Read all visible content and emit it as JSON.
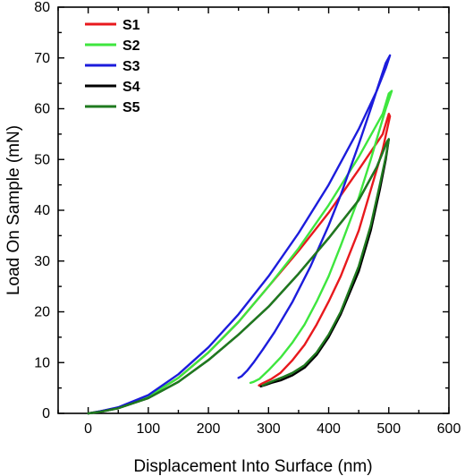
{
  "chart_data": {
    "type": "line",
    "title": "",
    "xlabel": "Displacement Into Surface (nm)",
    "ylabel": "Load On Sample (mN)",
    "xlim": [
      -50,
      600
    ],
    "ylim": [
      0,
      80
    ],
    "x_ticks": [
      0,
      100,
      200,
      300,
      400,
      500,
      600
    ],
    "y_ticks": [
      0,
      10,
      20,
      30,
      40,
      50,
      60,
      70,
      80
    ],
    "grid": false,
    "legend_position": "top-left",
    "series": [
      {
        "name": "S1",
        "color": "#e8191d",
        "x": [
          0,
          20,
          50,
          100,
          150,
          200,
          250,
          300,
          350,
          400,
          450,
          490,
          500,
          502,
          490,
          470,
          450,
          420,
          400,
          380,
          360,
          340,
          320,
          305,
          295,
          288,
          284
        ],
        "y": [
          0,
          0.4,
          1.1,
          3.3,
          7.0,
          12.0,
          18.0,
          25.0,
          32.0,
          39.5,
          48.0,
          55.0,
          59.0,
          58.5,
          52.0,
          44.0,
          36.0,
          27.0,
          22.0,
          17.5,
          13.5,
          10.5,
          8.0,
          6.8,
          6.2,
          5.8,
          5.5
        ]
      },
      {
        "name": "S2",
        "color": "#3ee63e",
        "x": [
          0,
          20,
          50,
          100,
          150,
          200,
          250,
          300,
          350,
          400,
          450,
          490,
          500,
          505,
          495,
          470,
          450,
          420,
          400,
          380,
          360,
          340,
          320,
          300,
          285,
          275,
          270
        ],
        "y": [
          0,
          0.4,
          1.1,
          3.3,
          7.0,
          12.0,
          18.0,
          25.0,
          32.5,
          41.0,
          50.5,
          59.0,
          63.0,
          63.5,
          60.0,
          50.0,
          42.5,
          33.0,
          27.0,
          22.0,
          17.5,
          14.0,
          11.0,
          8.5,
          6.8,
          6.2,
          6.0
        ]
      },
      {
        "name": "S3",
        "color": "#1c1cdc",
        "x": [
          0,
          20,
          50,
          100,
          150,
          200,
          250,
          300,
          350,
          400,
          450,
          480,
          495,
          502,
          495,
          470,
          450,
          420,
          400,
          370,
          340,
          310,
          290,
          275,
          265,
          255,
          250
        ],
        "y": [
          0,
          0.4,
          1.2,
          3.6,
          7.7,
          13.0,
          19.5,
          27.0,
          35.5,
          45.0,
          56.0,
          63.5,
          68.0,
          70.5,
          69.0,
          60.0,
          53.0,
          43.0,
          37.0,
          29.0,
          22.0,
          16.0,
          12.5,
          10.0,
          8.5,
          7.3,
          7.0
        ]
      },
      {
        "name": "S4",
        "color": "#000000",
        "x": [
          0,
          20,
          50,
          100,
          150,
          200,
          250,
          300,
          350,
          400,
          450,
          480,
          497,
          500,
          495,
          485,
          470,
          450,
          420,
          400,
          380,
          360,
          340,
          320,
          305,
          295,
          287
        ],
        "y": [
          0,
          0.3,
          1.0,
          3.0,
          6.2,
          10.5,
          15.5,
          21.0,
          27.5,
          34.5,
          42.0,
          48.5,
          53.5,
          54.0,
          50.0,
          44.0,
          36.0,
          28.0,
          19.5,
          15.0,
          11.5,
          9.0,
          7.5,
          6.5,
          6.0,
          5.6,
          5.3
        ]
      },
      {
        "name": "S5",
        "color": "#1f7a1f",
        "x": [
          0,
          20,
          50,
          100,
          150,
          200,
          250,
          300,
          350,
          400,
          450,
          480,
          497,
          500,
          495,
          485,
          470,
          450,
          420,
          400,
          380,
          360,
          340,
          325,
          310,
          300,
          290
        ],
        "y": [
          0,
          0.3,
          1.0,
          3.0,
          6.2,
          10.5,
          15.5,
          21.0,
          27.5,
          34.5,
          42.0,
          48.5,
          53.5,
          54.0,
          50.5,
          45.0,
          37.0,
          29.0,
          20.0,
          15.5,
          12.0,
          9.5,
          8.0,
          7.2,
          6.5,
          6.0,
          5.5
        ]
      }
    ]
  }
}
